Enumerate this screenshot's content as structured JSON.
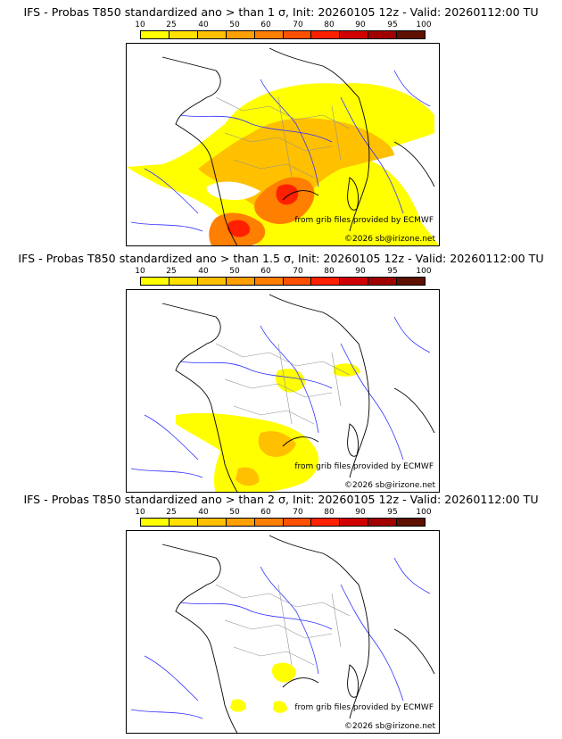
{
  "legend": {
    "labels": [
      "10",
      "25",
      "40",
      "50",
      "60",
      "70",
      "80",
      "90",
      "95",
      "100"
    ],
    "colors": [
      "#ffff00",
      "#ffe000",
      "#ffc000",
      "#ffa000",
      "#ff7f00",
      "#ff5000",
      "#ff2000",
      "#d00000",
      "#a00000",
      "#601000"
    ]
  },
  "panels": [
    {
      "title": "IFS - Probas T850  standardized ano > than 1 σ, Init: 20260105 12z - Valid: 20260112:00 TU",
      "credit": "from grib files provided by ECMWF",
      "copyright": "©2026 sb@irizone.net"
    },
    {
      "title": "IFS - Probas T850  standardized ano > than 1.5 σ, Init: 20260105 12z - Valid: 20260112:00 TU",
      "credit": "from grib files provided by ECMWF",
      "copyright": "©2026 sb@irizone.net"
    },
    {
      "title": "IFS - Probas T850  standardized ano > than 2 σ, Init: 20260105 12z - Valid: 20260112:00 TU",
      "credit": "from grib files provided by ECMWF",
      "copyright": "©2026 sb@irizone.net"
    }
  ]
}
